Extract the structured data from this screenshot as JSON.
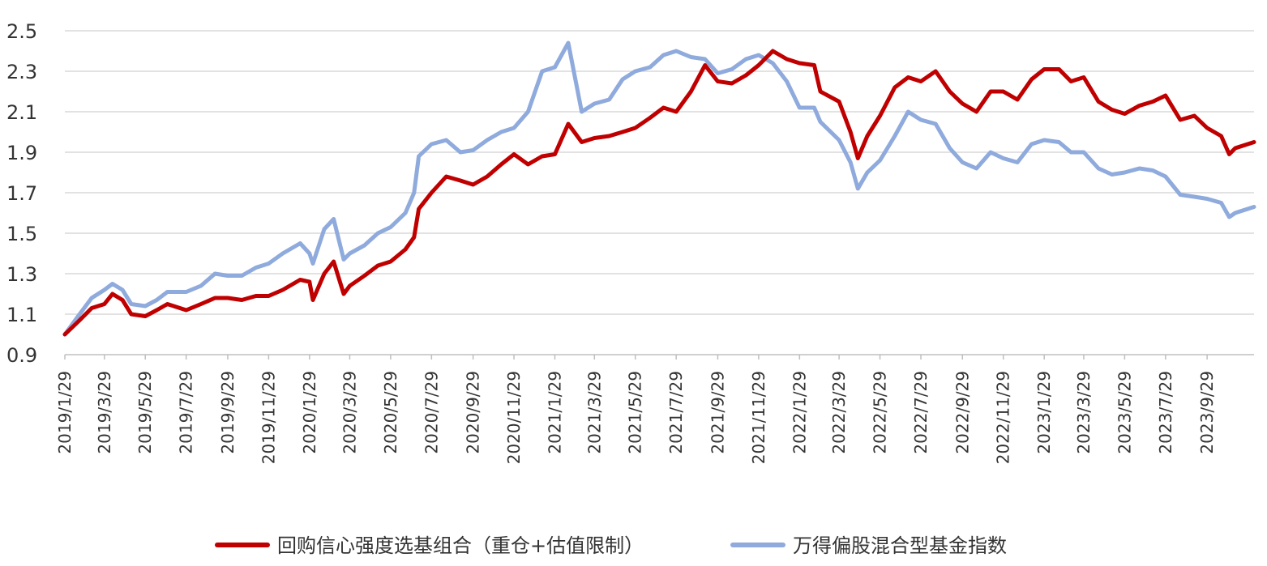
{
  "colors": {
    "series_red": "#c00000",
    "series_blue": "#8faadc",
    "grid": "#d9d9d9",
    "axis": "#bfbfbf",
    "text": "#333333"
  },
  "chart_data": {
    "type": "line",
    "title": "",
    "xlabel": "",
    "ylabel": "",
    "ylim": [
      0.9,
      2.5
    ],
    "yticks": [
      "0.9",
      "1.1",
      "1.3",
      "1.5",
      "1.7",
      "1.9",
      "2.1",
      "2.3",
      "2.5"
    ],
    "xlim": [
      "2019-01-29",
      "2023-12-08"
    ],
    "xtick_labels": [
      "2019/1/29",
      "2019/3/29",
      "2019/5/29",
      "2019/7/29",
      "2019/9/29",
      "2019/11/29",
      "2020/1/29",
      "2020/3/29",
      "2020/5/29",
      "2020/7/29",
      "2020/9/29",
      "2020/11/29",
      "2021/1/29",
      "2021/3/29",
      "2021/5/29",
      "2021/7/29",
      "2021/9/29",
      "2021/11/29",
      "2022/1/29",
      "2022/3/29",
      "2022/5/29",
      "2022/7/29",
      "2022/9/29",
      "2022/11/29",
      "2023/1/29",
      "2023/3/29",
      "2023/5/29",
      "2023/7/29",
      "2023/9/29"
    ],
    "grid": true,
    "legend": "bottom",
    "series": [
      {
        "name": "回购信心强度选基组合（重仓+估值限制）",
        "color": "#c00000",
        "points": [
          [
            "2019-01-29",
            1.0
          ],
          [
            "2019-02-20",
            1.07
          ],
          [
            "2019-03-10",
            1.13
          ],
          [
            "2019-03-29",
            1.15
          ],
          [
            "2019-04-10",
            1.2
          ],
          [
            "2019-04-25",
            1.17
          ],
          [
            "2019-05-08",
            1.1
          ],
          [
            "2019-05-29",
            1.09
          ],
          [
            "2019-06-15",
            1.12
          ],
          [
            "2019-07-01",
            1.15
          ],
          [
            "2019-07-29",
            1.12
          ],
          [
            "2019-08-20",
            1.15
          ],
          [
            "2019-09-10",
            1.18
          ],
          [
            "2019-09-29",
            1.18
          ],
          [
            "2019-10-20",
            1.17
          ],
          [
            "2019-11-10",
            1.19
          ],
          [
            "2019-11-29",
            1.19
          ],
          [
            "2019-12-20",
            1.22
          ],
          [
            "2020-01-15",
            1.27
          ],
          [
            "2020-01-29",
            1.26
          ],
          [
            "2020-02-03",
            1.17
          ],
          [
            "2020-02-20",
            1.3
          ],
          [
            "2020-03-05",
            1.36
          ],
          [
            "2020-03-20",
            1.2
          ],
          [
            "2020-03-29",
            1.24
          ],
          [
            "2020-04-20",
            1.29
          ],
          [
            "2020-05-10",
            1.34
          ],
          [
            "2020-05-29",
            1.36
          ],
          [
            "2020-06-20",
            1.42
          ],
          [
            "2020-07-03",
            1.48
          ],
          [
            "2020-07-10",
            1.62
          ],
          [
            "2020-07-29",
            1.7
          ],
          [
            "2020-08-20",
            1.78
          ],
          [
            "2020-09-10",
            1.76
          ],
          [
            "2020-09-29",
            1.74
          ],
          [
            "2020-10-20",
            1.78
          ],
          [
            "2020-11-10",
            1.84
          ],
          [
            "2020-11-29",
            1.89
          ],
          [
            "2020-12-20",
            1.84
          ],
          [
            "2021-01-10",
            1.88
          ],
          [
            "2021-01-29",
            1.89
          ],
          [
            "2021-02-18",
            2.04
          ],
          [
            "2021-03-10",
            1.95
          ],
          [
            "2021-03-29",
            1.97
          ],
          [
            "2021-04-20",
            1.98
          ],
          [
            "2021-05-10",
            2.0
          ],
          [
            "2021-05-29",
            2.02
          ],
          [
            "2021-06-20",
            2.07
          ],
          [
            "2021-07-10",
            2.12
          ],
          [
            "2021-07-29",
            2.1
          ],
          [
            "2021-08-20",
            2.2
          ],
          [
            "2021-09-10",
            2.33
          ],
          [
            "2021-09-29",
            2.25
          ],
          [
            "2021-10-20",
            2.24
          ],
          [
            "2021-11-10",
            2.28
          ],
          [
            "2021-11-29",
            2.33
          ],
          [
            "2021-12-20",
            2.4
          ],
          [
            "2022-01-10",
            2.36
          ],
          [
            "2022-01-29",
            2.34
          ],
          [
            "2022-02-20",
            2.33
          ],
          [
            "2022-03-01",
            2.2
          ],
          [
            "2022-03-29",
            2.15
          ],
          [
            "2022-04-15",
            2.0
          ],
          [
            "2022-04-26",
            1.87
          ],
          [
            "2022-05-10",
            1.98
          ],
          [
            "2022-05-29",
            2.08
          ],
          [
            "2022-06-20",
            2.22
          ],
          [
            "2022-07-10",
            2.27
          ],
          [
            "2022-07-29",
            2.25
          ],
          [
            "2022-08-20",
            2.3
          ],
          [
            "2022-09-10",
            2.2
          ],
          [
            "2022-09-29",
            2.14
          ],
          [
            "2022-10-20",
            2.1
          ],
          [
            "2022-11-10",
            2.2
          ],
          [
            "2022-11-29",
            2.2
          ],
          [
            "2022-12-20",
            2.16
          ],
          [
            "2023-01-10",
            2.26
          ],
          [
            "2023-01-29",
            2.31
          ],
          [
            "2023-02-20",
            2.31
          ],
          [
            "2023-03-10",
            2.25
          ],
          [
            "2023-03-29",
            2.27
          ],
          [
            "2023-04-20",
            2.15
          ],
          [
            "2023-05-10",
            2.11
          ],
          [
            "2023-05-29",
            2.09
          ],
          [
            "2023-06-20",
            2.13
          ],
          [
            "2023-07-10",
            2.15
          ],
          [
            "2023-07-29",
            2.18
          ],
          [
            "2023-08-20",
            2.06
          ],
          [
            "2023-09-10",
            2.08
          ],
          [
            "2023-09-29",
            2.02
          ],
          [
            "2023-10-20",
            1.98
          ],
          [
            "2023-11-01",
            1.89
          ],
          [
            "2023-11-10",
            1.92
          ],
          [
            "2023-12-08",
            1.95
          ]
        ]
      },
      {
        "name": "万得偏股混合型基金指数",
        "color": "#8faadc",
        "points": [
          [
            "2019-01-29",
            1.0
          ],
          [
            "2019-02-20",
            1.1
          ],
          [
            "2019-03-10",
            1.18
          ],
          [
            "2019-03-29",
            1.22
          ],
          [
            "2019-04-10",
            1.25
          ],
          [
            "2019-04-25",
            1.22
          ],
          [
            "2019-05-08",
            1.15
          ],
          [
            "2019-05-29",
            1.14
          ],
          [
            "2019-06-15",
            1.17
          ],
          [
            "2019-07-01",
            1.21
          ],
          [
            "2019-07-29",
            1.21
          ],
          [
            "2019-08-20",
            1.24
          ],
          [
            "2019-09-10",
            1.3
          ],
          [
            "2019-09-29",
            1.29
          ],
          [
            "2019-10-20",
            1.29
          ],
          [
            "2019-11-10",
            1.33
          ],
          [
            "2019-11-29",
            1.35
          ],
          [
            "2019-12-20",
            1.4
          ],
          [
            "2020-01-15",
            1.45
          ],
          [
            "2020-01-29",
            1.4
          ],
          [
            "2020-02-03",
            1.35
          ],
          [
            "2020-02-20",
            1.52
          ],
          [
            "2020-03-05",
            1.57
          ],
          [
            "2020-03-20",
            1.37
          ],
          [
            "2020-03-29",
            1.4
          ],
          [
            "2020-04-20",
            1.44
          ],
          [
            "2020-05-10",
            1.5
          ],
          [
            "2020-05-29",
            1.53
          ],
          [
            "2020-06-20",
            1.6
          ],
          [
            "2020-07-03",
            1.7
          ],
          [
            "2020-07-10",
            1.88
          ],
          [
            "2020-07-29",
            1.94
          ],
          [
            "2020-08-20",
            1.96
          ],
          [
            "2020-09-10",
            1.9
          ],
          [
            "2020-09-29",
            1.91
          ],
          [
            "2020-10-20",
            1.96
          ],
          [
            "2020-11-10",
            2.0
          ],
          [
            "2020-11-29",
            2.02
          ],
          [
            "2020-12-20",
            2.1
          ],
          [
            "2021-01-10",
            2.3
          ],
          [
            "2021-01-29",
            2.32
          ],
          [
            "2021-02-18",
            2.44
          ],
          [
            "2021-03-10",
            2.1
          ],
          [
            "2021-03-29",
            2.14
          ],
          [
            "2021-04-20",
            2.16
          ],
          [
            "2021-05-10",
            2.26
          ],
          [
            "2021-05-29",
            2.3
          ],
          [
            "2021-06-20",
            2.32
          ],
          [
            "2021-07-10",
            2.38
          ],
          [
            "2021-07-29",
            2.4
          ],
          [
            "2021-08-20",
            2.37
          ],
          [
            "2021-09-10",
            2.36
          ],
          [
            "2021-09-29",
            2.29
          ],
          [
            "2021-10-20",
            2.31
          ],
          [
            "2021-11-10",
            2.36
          ],
          [
            "2021-11-29",
            2.38
          ],
          [
            "2021-12-20",
            2.34
          ],
          [
            "2022-01-10",
            2.25
          ],
          [
            "2022-01-29",
            2.12
          ],
          [
            "2022-02-20",
            2.12
          ],
          [
            "2022-03-01",
            2.05
          ],
          [
            "2022-03-29",
            1.96
          ],
          [
            "2022-04-15",
            1.85
          ],
          [
            "2022-04-26",
            1.72
          ],
          [
            "2022-05-10",
            1.8
          ],
          [
            "2022-05-29",
            1.86
          ],
          [
            "2022-06-20",
            1.98
          ],
          [
            "2022-07-10",
            2.1
          ],
          [
            "2022-07-29",
            2.06
          ],
          [
            "2022-08-20",
            2.04
          ],
          [
            "2022-09-10",
            1.92
          ],
          [
            "2022-09-29",
            1.85
          ],
          [
            "2022-10-20",
            1.82
          ],
          [
            "2022-11-10",
            1.9
          ],
          [
            "2022-11-29",
            1.87
          ],
          [
            "2022-12-20",
            1.85
          ],
          [
            "2023-01-10",
            1.94
          ],
          [
            "2023-01-29",
            1.96
          ],
          [
            "2023-02-20",
            1.95
          ],
          [
            "2023-03-10",
            1.9
          ],
          [
            "2023-03-29",
            1.9
          ],
          [
            "2023-04-20",
            1.82
          ],
          [
            "2023-05-10",
            1.79
          ],
          [
            "2023-05-29",
            1.8
          ],
          [
            "2023-06-20",
            1.82
          ],
          [
            "2023-07-10",
            1.81
          ],
          [
            "2023-07-29",
            1.78
          ],
          [
            "2023-08-20",
            1.69
          ],
          [
            "2023-09-10",
            1.68
          ],
          [
            "2023-09-29",
            1.67
          ],
          [
            "2023-10-20",
            1.65
          ],
          [
            "2023-11-01",
            1.58
          ],
          [
            "2023-11-10",
            1.6
          ],
          [
            "2023-12-08",
            1.63
          ]
        ]
      }
    ]
  }
}
